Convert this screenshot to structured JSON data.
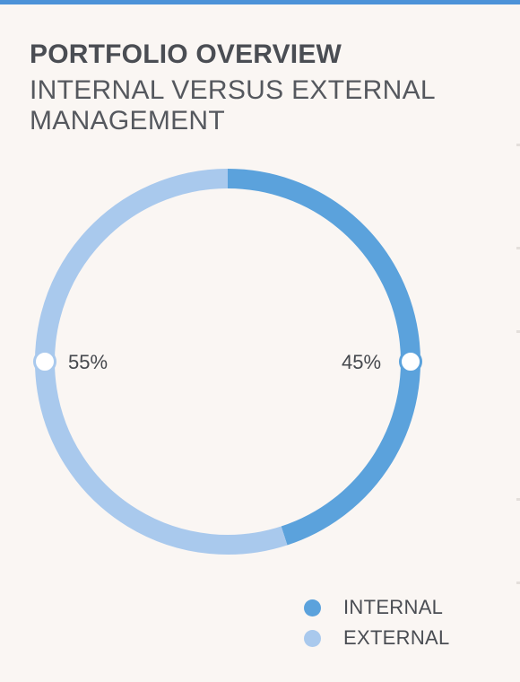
{
  "header": {
    "title": "PORTFOLIO OVERVIEW",
    "subtitle": "INTERNAL VERSUS EXTERNAL MANAGEMENT"
  },
  "colors": {
    "top_bar": "#4c92d8",
    "internal": "#5ba2dc",
    "external": "#a9c9ed",
    "background": "#faf6f3"
  },
  "chart_data": {
    "type": "pie",
    "style": "donut",
    "title": "PORTFOLIO OVERVIEW",
    "subtitle": "INTERNAL VERSUS EXTERNAL MANAGEMENT",
    "categories": [
      "INTERNAL",
      "EXTERNAL"
    ],
    "values": [
      45,
      55
    ],
    "unit": "%",
    "data_labels": [
      "45%",
      "55%"
    ],
    "colors": [
      "#5ba2dc",
      "#a9c9ed"
    ],
    "start_angle": "12 o'clock",
    "direction": "clockwise",
    "legend": {
      "placement": "bottom-right",
      "entries": [
        "INTERNAL",
        "EXTERNAL"
      ]
    }
  }
}
